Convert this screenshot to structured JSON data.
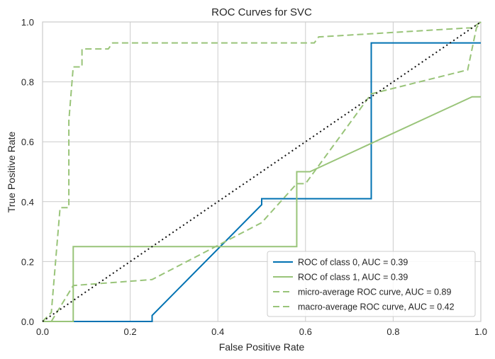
{
  "chart_data": {
    "type": "line",
    "title": "ROC Curves for SVC",
    "xlabel": "False Positive Rate",
    "ylabel": "True Positive Rate",
    "xlim": [
      0,
      1
    ],
    "ylim": [
      0,
      1
    ],
    "xticks": [
      "0.0",
      "0.2",
      "0.4",
      "0.6",
      "0.8",
      "1.0"
    ],
    "yticks": [
      "0.0",
      "0.2",
      "0.4",
      "0.6",
      "0.8",
      "1.0"
    ],
    "grid": true,
    "legend_position": "bottom-right",
    "series": [
      {
        "name": "ROC of class 0, AUC = 0.39",
        "color": "#0072b2",
        "dash": "solid",
        "x": [
          0,
          0.25,
          0.25,
          0.5,
          0.5,
          0.75,
          0.75,
          1.0
        ],
        "y": [
          0,
          0,
          0.02,
          0.39,
          0.41,
          0.41,
          0.93,
          0.93
        ]
      },
      {
        "name": "ROC of class 1, AUC = 0.39",
        "color": "#99c479",
        "dash": "solid",
        "x": [
          0,
          0.07,
          0.07,
          0.58,
          0.58,
          0.61,
          0.98,
          1.0
        ],
        "y": [
          0,
          0,
          0.25,
          0.25,
          0.5,
          0.5,
          0.75,
          0.75
        ]
      },
      {
        "name": "micro-average ROC curve, AUC = 0.89",
        "color": "#99c479",
        "dash": "dashed",
        "x": [
          0,
          0.02,
          0.04,
          0.06,
          0.06,
          0.07,
          0.08,
          0.09,
          0.09,
          0.11,
          0.15,
          0.16,
          0.38,
          0.62,
          0.63,
          0.97,
          0.98,
          1.0
        ],
        "y": [
          0,
          0.03,
          0.38,
          0.38,
          0.67,
          0.85,
          0.85,
          0.85,
          0.91,
          0.91,
          0.91,
          0.93,
          0.93,
          0.93,
          0.95,
          0.98,
          0.98,
          1.0
        ]
      },
      {
        "name": "macro-average ROC curve, AUC = 0.42",
        "color": "#99c479",
        "dash": "dashed",
        "x": [
          0.02,
          0.07,
          0.25,
          0.5,
          0.58,
          0.6,
          0.75,
          0.97,
          0.99,
          1.0
        ],
        "y": [
          0,
          0.12,
          0.14,
          0.33,
          0.46,
          0.46,
          0.76,
          0.84,
          0.98,
          1.0
        ]
      }
    ],
    "reference_line": {
      "x": [
        0,
        1
      ],
      "y": [
        0,
        1
      ],
      "color": "#111111",
      "dash": "dotted"
    }
  }
}
